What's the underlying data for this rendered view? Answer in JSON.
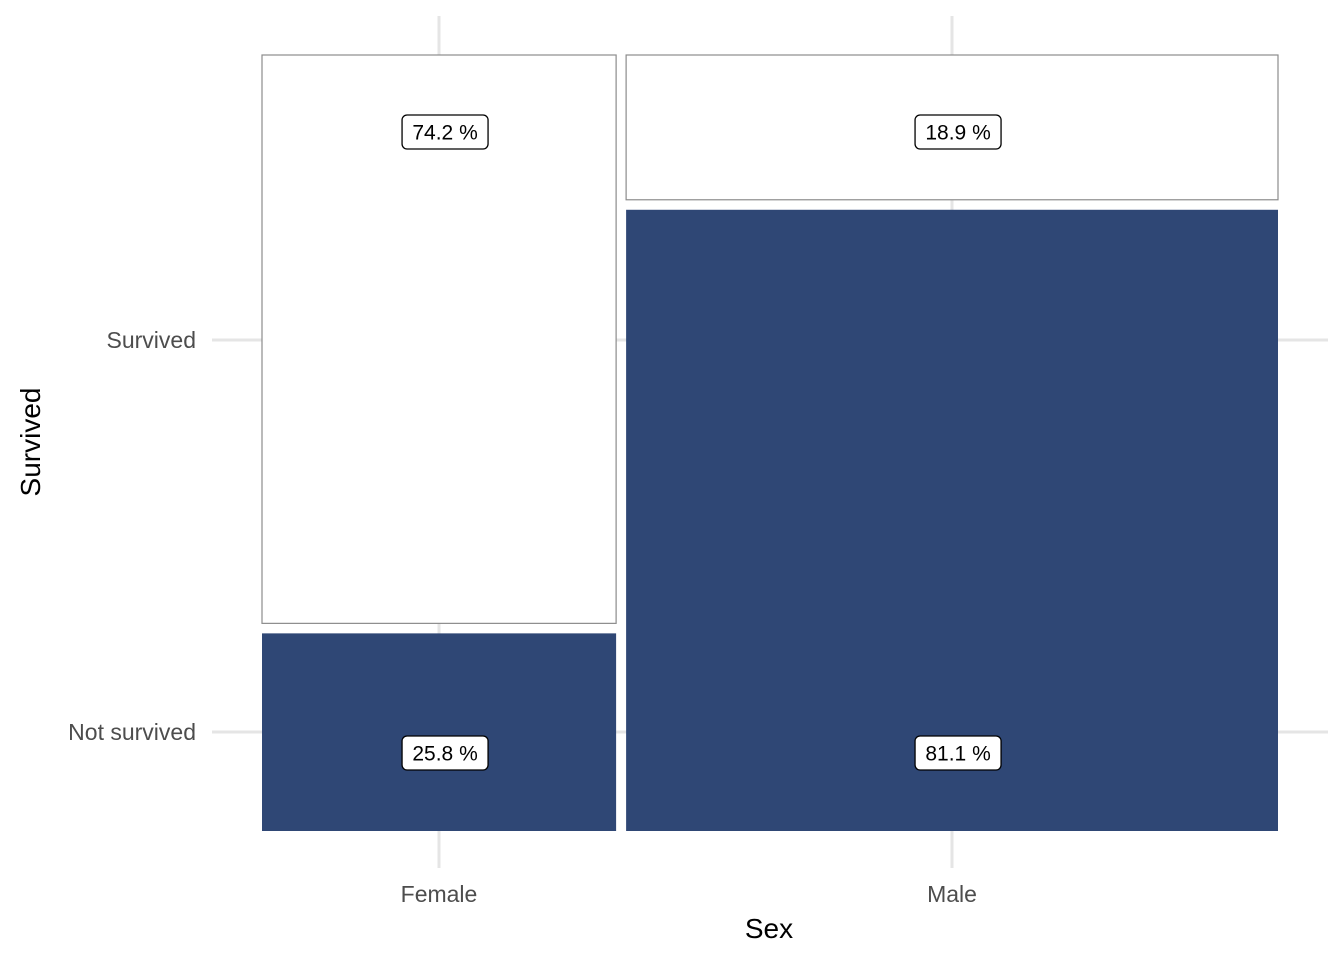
{
  "chart_data": {
    "type": "mosaic",
    "xlabel": "Sex",
    "ylabel": "Survived",
    "x_categories": [
      "Female",
      "Male"
    ],
    "x_proportions": [
      0.352,
      0.648
    ],
    "y_categories": [
      "Not survived",
      "Survived"
    ],
    "y_tick_labels": [
      "Survived",
      "Not survived"
    ],
    "cells": [
      {
        "sex": "Female",
        "survived": "Not survived",
        "percent": 25.8,
        "label": "25.8 %"
      },
      {
        "sex": "Female",
        "survived": "Survived",
        "percent": 74.2,
        "label": "74.2 %"
      },
      {
        "sex": "Male",
        "survived": "Not survived",
        "percent": 81.1,
        "label": "81.1 %"
      },
      {
        "sex": "Male",
        "survived": "Survived",
        "percent": 18.9,
        "label": "18.9 %"
      }
    ],
    "fill_colors": {
      "Survived": "#ffffff",
      "Not survived": "#2f4775"
    },
    "grid": true,
    "legend": "none"
  }
}
